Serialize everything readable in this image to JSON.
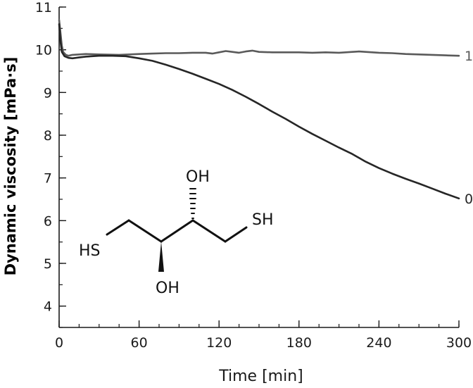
{
  "chart_data": {
    "type": "line",
    "xlabel": "Time [min]",
    "ylabel": "Dynamic viscosity [mPa·s]",
    "xlim": [
      0,
      300
    ],
    "ylim": [
      3.5,
      11
    ],
    "x_ticks": [
      0,
      60,
      120,
      180,
      240,
      300
    ],
    "y_ticks": [
      4,
      5,
      6,
      7,
      8,
      9,
      10,
      11
    ],
    "x_minor_step": 15,
    "y_minor_step": 0.5,
    "grid": false,
    "legend": "labels at right end of lines",
    "series": [
      {
        "name": "1",
        "color": "#5a5a5a",
        "x": [
          0,
          1,
          2,
          3,
          5,
          7,
          10,
          20,
          30,
          45,
          60,
          70,
          80,
          90,
          100,
          110,
          115,
          120,
          125,
          130,
          135,
          140,
          145,
          150,
          160,
          170,
          180,
          190,
          200,
          210,
          220,
          225,
          230,
          240,
          250,
          260,
          270,
          280,
          290,
          300
        ],
        "y": [
          10.7,
          10.4,
          10.1,
          9.95,
          9.88,
          9.86,
          9.88,
          9.9,
          9.89,
          9.88,
          9.9,
          9.91,
          9.92,
          9.92,
          9.93,
          9.93,
          9.91,
          9.94,
          9.97,
          9.95,
          9.93,
          9.96,
          9.98,
          9.95,
          9.94,
          9.94,
          9.94,
          9.93,
          9.94,
          9.93,
          9.95,
          9.96,
          9.95,
          9.93,
          9.92,
          9.9,
          9.89,
          9.88,
          9.87,
          9.86
        ]
      },
      {
        "name": "0",
        "color": "#262626",
        "x": [
          0,
          1,
          2,
          4,
          7,
          10,
          15,
          20,
          30,
          40,
          50,
          60,
          70,
          80,
          90,
          100,
          110,
          120,
          130,
          140,
          150,
          160,
          170,
          180,
          190,
          200,
          210,
          220,
          230,
          240,
          250,
          260,
          270,
          280,
          290,
          300
        ],
        "y": [
          10.6,
          10.2,
          9.95,
          9.85,
          9.81,
          9.8,
          9.82,
          9.84,
          9.86,
          9.86,
          9.85,
          9.8,
          9.74,
          9.65,
          9.55,
          9.44,
          9.32,
          9.2,
          9.06,
          8.9,
          8.73,
          8.55,
          8.38,
          8.2,
          8.03,
          7.87,
          7.71,
          7.56,
          7.38,
          7.23,
          7.1,
          6.98,
          6.87,
          6.75,
          6.63,
          6.52
        ]
      }
    ],
    "annotations": [
      {
        "type": "molecule",
        "labels": [
          "HS",
          "OH",
          "OH",
          "SH"
        ]
      }
    ]
  }
}
